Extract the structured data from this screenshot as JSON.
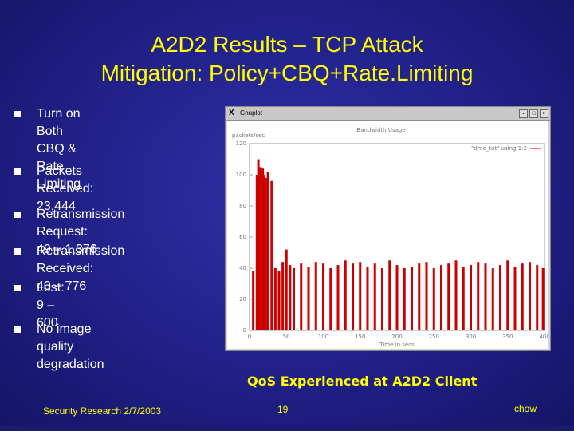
{
  "slide": {
    "title_line1": "A2D2 Results – TCP Attack",
    "title_line2": "Mitigation: Policy+CBQ+Rate.Limiting",
    "bullets": [
      "Turn on Both CBQ & Rate\nLimiting",
      "Packets Received: 23,444",
      "Retransmission Request:\n49 – 1,376",
      "Retransmission Received:\n40 – 776",
      "Lost: 9 – 600",
      "No image quality\ndegradation"
    ],
    "caption": "QoS Experienced at A2D2 Client",
    "footer_left": "Security Research 2/7/2003",
    "footer_center": "19",
    "footer_right": "chow"
  },
  "window": {
    "title": "Gnuplot",
    "xicon": "X"
  },
  "plot": {
    "title": "Bandwidth Usage",
    "ylabel": "packets/sec",
    "xlabel": "Time in secs",
    "legend": "\"dmo_tot\" using 1:2",
    "color": "#cc0000"
  },
  "chart_data": {
    "type": "bar",
    "title": "Bandwidth Usage",
    "xlabel": "Time in secs",
    "ylabel": "packets/sec",
    "xlim": [
      0,
      400
    ],
    "ylim": [
      0,
      120
    ],
    "xticks": [
      "0",
      "50",
      "100",
      "150",
      "200",
      "250",
      "300",
      "350",
      "400"
    ],
    "yticks": [
      "0",
      "20",
      "40",
      "60",
      "80",
      "100",
      "120"
    ],
    "series": [
      {
        "name": "\"dmo_tot\" using 1:2",
        "x": [
          5,
          10,
          12,
          15,
          18,
          20,
          22,
          25,
          30,
          35,
          40,
          45,
          50,
          55,
          60,
          70,
          80,
          90,
          100,
          110,
          120,
          130,
          140,
          150,
          160,
          170,
          180,
          190,
          200,
          210,
          220,
          230,
          240,
          250,
          260,
          270,
          280,
          290,
          300,
          310,
          320,
          330,
          340,
          350,
          360,
          370,
          380,
          390,
          398
        ],
        "values": [
          38,
          100,
          110,
          105,
          104,
          100,
          98,
          102,
          96,
          40,
          38,
          44,
          52,
          42,
          40,
          43,
          41,
          44,
          43,
          40,
          42,
          45,
          43,
          44,
          41,
          43,
          40,
          45,
          42,
          40,
          41,
          43,
          44,
          40,
          42,
          43,
          45,
          41,
          42,
          44,
          43,
          40,
          42,
          45,
          41,
          43,
          44,
          42,
          40
        ]
      }
    ]
  }
}
